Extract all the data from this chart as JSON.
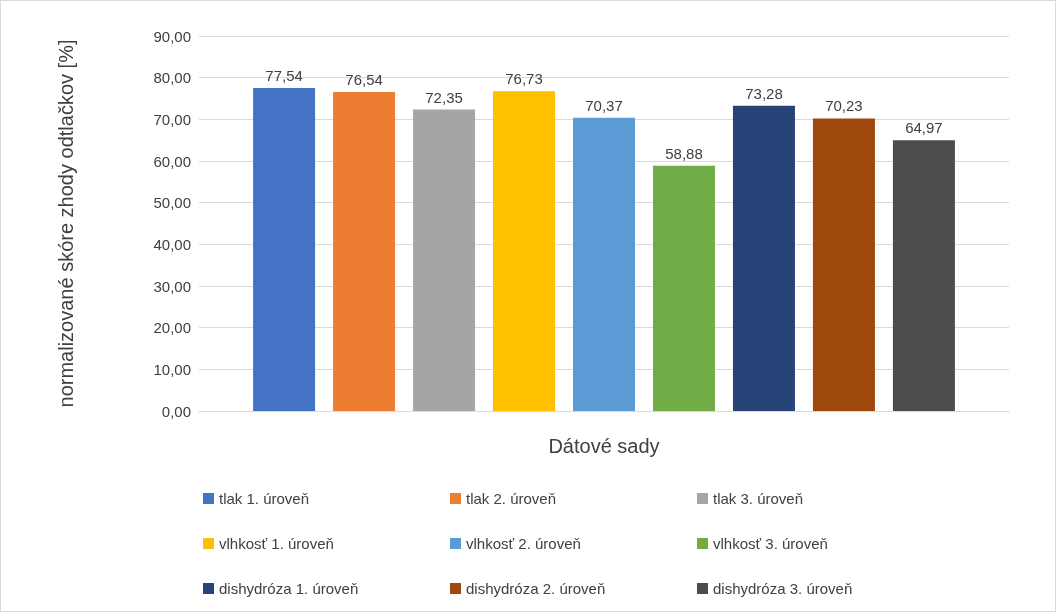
{
  "chart_data": {
    "type": "bar",
    "xlabel": "Dátové sady",
    "ylabel": "normalizované skóre zhody odtlačkov [%]",
    "categories": [
      null
    ],
    "ylim": [
      0,
      90
    ],
    "yticks": [
      {
        "value": 0,
        "label": "0,00"
      },
      {
        "value": 10,
        "label": "10,00"
      },
      {
        "value": 20,
        "label": "20,00"
      },
      {
        "value": 30,
        "label": "30,00"
      },
      {
        "value": 40,
        "label": "40,00"
      },
      {
        "value": 50,
        "label": "50,00"
      },
      {
        "value": 60,
        "label": "60,00"
      },
      {
        "value": 70,
        "label": "70,00"
      },
      {
        "value": 80,
        "label": "80,00"
      },
      {
        "value": 90,
        "label": "90,00"
      }
    ],
    "grid": "y",
    "legend": "bottom",
    "series": [
      {
        "name": "tlak 1. úroveň",
        "color": "#4472c4",
        "values": [
          77.54
        ],
        "value_labels": [
          "77,54"
        ]
      },
      {
        "name": "tlak 2. úroveň",
        "color": "#ed7d31",
        "values": [
          76.54
        ],
        "value_labels": [
          "76,54"
        ]
      },
      {
        "name": "tlak 3. úroveň",
        "color": "#a5a5a5",
        "values": [
          72.35
        ],
        "value_labels": [
          "72,35"
        ]
      },
      {
        "name": "vlhkosť 1. úroveň",
        "color": "#ffc000",
        "values": [
          76.73
        ],
        "value_labels": [
          "76,73"
        ]
      },
      {
        "name": "vlhkosť 2. úroveň",
        "color": "#5b9bd5",
        "values": [
          70.37
        ],
        "value_labels": [
          "70,37"
        ]
      },
      {
        "name": "vlhkosť 3. úroveň",
        "color": "#70ad47",
        "values": [
          58.88
        ],
        "value_labels": [
          "58,88"
        ]
      },
      {
        "name": "dishydróza 1. úroveň",
        "color": "#264478",
        "values": [
          73.28
        ],
        "value_labels": [
          "73,28"
        ]
      },
      {
        "name": "dishydróza 2. úroveň",
        "color": "#9e480e",
        "values": [
          70.23
        ],
        "value_labels": [
          "70,23"
        ]
      },
      {
        "name": "dishydróza 3. úroveň",
        "color": "#4d4d4d",
        "values": [
          64.97
        ],
        "value_labels": [
          "64,97"
        ]
      }
    ]
  }
}
